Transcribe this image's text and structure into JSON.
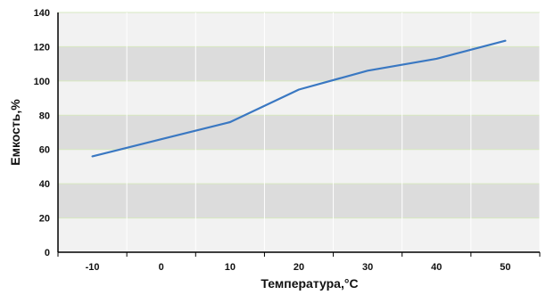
{
  "chart_data": {
    "type": "line",
    "title": "",
    "xlabel": "Температура,°C",
    "ylabel": "Емкость,%",
    "xlim": [
      -15,
      55
    ],
    "ylim": [
      0,
      140
    ],
    "x_ticks": [
      -10,
      0,
      10,
      20,
      30,
      40,
      50
    ],
    "y_ticks": [
      0,
      20,
      40,
      60,
      80,
      100,
      120,
      140
    ],
    "grid": "horizontal alternating bands with light vertical grid lines",
    "legend": "none",
    "series": [
      {
        "points": [
          [
            -10,
            56
          ],
          [
            0,
            66
          ],
          [
            10,
            76
          ],
          [
            20,
            95
          ],
          [
            30,
            106
          ],
          [
            40,
            113
          ],
          [
            50,
            123.5
          ]
        ],
        "color": "#3a78c2"
      }
    ],
    "colors": {
      "band_dark": "#dcdcdc",
      "band_light": "#f2f2f2",
      "vertical_grid": "#ffffff",
      "band_edge": "#d7e8c0",
      "axis": "#000000",
      "line": "#3a78c2"
    }
  }
}
